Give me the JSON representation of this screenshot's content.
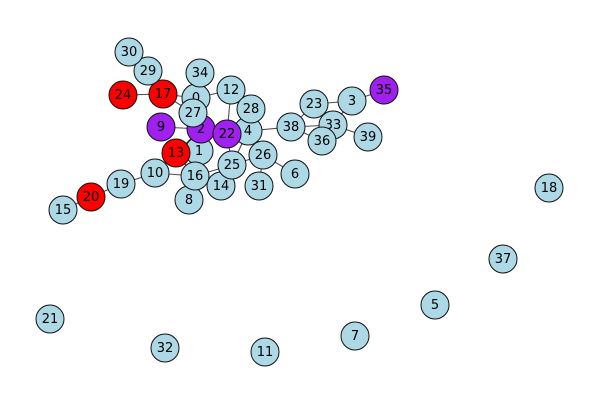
{
  "colors": {
    "default": "#add8e6",
    "red": "#ff0000",
    "purple": "#a020f0",
    "edge": "#4d4d4d",
    "stroke": "#111111"
  },
  "nodes": [
    {
      "id": "0",
      "label": "0",
      "color": "default"
    },
    {
      "id": "1",
      "label": "1",
      "color": "default"
    },
    {
      "id": "2",
      "label": "2",
      "color": "purple"
    },
    {
      "id": "3",
      "label": "3",
      "color": "default"
    },
    {
      "id": "4",
      "label": "4",
      "color": "default"
    },
    {
      "id": "5",
      "label": "5",
      "color": "default"
    },
    {
      "id": "6",
      "label": "6",
      "color": "default"
    },
    {
      "id": "7",
      "label": "7",
      "color": "default"
    },
    {
      "id": "8",
      "label": "8",
      "color": "default"
    },
    {
      "id": "9",
      "label": "9",
      "color": "purple"
    },
    {
      "id": "10",
      "label": "10",
      "color": "default"
    },
    {
      "id": "11",
      "label": "11",
      "color": "default"
    },
    {
      "id": "12",
      "label": "12",
      "color": "default"
    },
    {
      "id": "13",
      "label": "13",
      "color": "red"
    },
    {
      "id": "14",
      "label": "14",
      "color": "default"
    },
    {
      "id": "15",
      "label": "15",
      "color": "default"
    },
    {
      "id": "16",
      "label": "16",
      "color": "default"
    },
    {
      "id": "17",
      "label": "17",
      "color": "red"
    },
    {
      "id": "18",
      "label": "18",
      "color": "default"
    },
    {
      "id": "19",
      "label": "19",
      "color": "default"
    },
    {
      "id": "20",
      "label": "20",
      "color": "red"
    },
    {
      "id": "21",
      "label": "21",
      "color": "default"
    },
    {
      "id": "22",
      "label": "22",
      "color": "purple"
    },
    {
      "id": "23",
      "label": "23",
      "color": "default"
    },
    {
      "id": "24",
      "label": "24",
      "color": "red"
    },
    {
      "id": "25",
      "label": "25",
      "color": "default"
    },
    {
      "id": "26",
      "label": "26",
      "color": "default"
    },
    {
      "id": "27",
      "label": "27",
      "color": "default"
    },
    {
      "id": "28",
      "label": "28",
      "color": "default"
    },
    {
      "id": "29",
      "label": "29",
      "color": "default"
    },
    {
      "id": "30",
      "label": "30",
      "color": "default"
    },
    {
      "id": "31",
      "label": "31",
      "color": "default"
    },
    {
      "id": "32",
      "label": "32",
      "color": "default"
    },
    {
      "id": "33",
      "label": "33",
      "color": "default"
    },
    {
      "id": "34",
      "label": "34",
      "color": "default"
    },
    {
      "id": "35",
      "label": "35",
      "color": "purple"
    },
    {
      "id": "36",
      "label": "36",
      "color": "default"
    },
    {
      "id": "37",
      "label": "37",
      "color": "default"
    },
    {
      "id": "38",
      "label": "38",
      "color": "default"
    },
    {
      "id": "39",
      "label": "39",
      "color": "default"
    }
  ],
  "edges": [
    [
      "30",
      "29"
    ],
    [
      "29",
      "17"
    ],
    [
      "24",
      "17"
    ],
    [
      "17",
      "0"
    ],
    [
      "17",
      "27"
    ],
    [
      "34",
      "0"
    ],
    [
      "0",
      "12"
    ],
    [
      "0",
      "27"
    ],
    [
      "27",
      "2"
    ],
    [
      "9",
      "2"
    ],
    [
      "2",
      "22"
    ],
    [
      "2",
      "1"
    ],
    [
      "2",
      "13"
    ],
    [
      "12",
      "22"
    ],
    [
      "28",
      "22"
    ],
    [
      "22",
      "4"
    ],
    [
      "4",
      "28"
    ],
    [
      "4",
      "38"
    ],
    [
      "4",
      "26"
    ],
    [
      "4",
      "25"
    ],
    [
      "38",
      "33"
    ],
    [
      "38",
      "23"
    ],
    [
      "38",
      "36"
    ],
    [
      "23",
      "3"
    ],
    [
      "23",
      "33"
    ],
    [
      "3",
      "35"
    ],
    [
      "3",
      "33"
    ],
    [
      "33",
      "36"
    ],
    [
      "33",
      "39"
    ],
    [
      "26",
      "6"
    ],
    [
      "26",
      "31"
    ],
    [
      "26",
      "25"
    ],
    [
      "25",
      "14"
    ],
    [
      "25",
      "16"
    ],
    [
      "13",
      "1"
    ],
    [
      "13",
      "10"
    ],
    [
      "13",
      "16"
    ],
    [
      "16",
      "8"
    ],
    [
      "16",
      "14"
    ],
    [
      "10",
      "16"
    ],
    [
      "10",
      "19"
    ],
    [
      "19",
      "20"
    ],
    [
      "20",
      "15"
    ],
    [
      "1",
      "16"
    ],
    [
      "22",
      "25"
    ]
  ]
}
